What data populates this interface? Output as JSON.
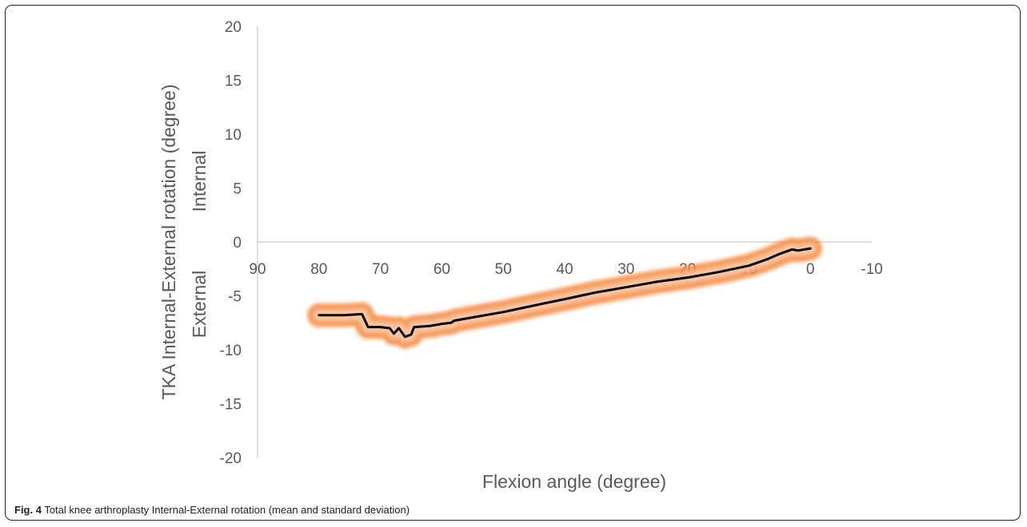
{
  "chart_data": {
    "type": "line",
    "xlabel": "Flexion angle (degree)",
    "ylabel": "TKA Internal-External rotation (degree)",
    "annotations": {
      "positive": "Internal",
      "negative": "External"
    },
    "x_axis_reversed": true,
    "xlim": [
      90,
      -10
    ],
    "ylim": [
      -20,
      20
    ],
    "x_ticks": [
      90,
      80,
      70,
      60,
      50,
      40,
      30,
      20,
      10,
      0,
      -10
    ],
    "y_ticks": [
      20,
      15,
      10,
      5,
      0,
      -5,
      -10,
      -15,
      -20
    ],
    "grid": false,
    "series": [
      {
        "role": "mean",
        "color": "#000000",
        "x": [
          80,
          76,
          73,
          72,
          70,
          68.5,
          67.8,
          67,
          66,
          65,
          64.5,
          62,
          60,
          58.5,
          58,
          55,
          50,
          45,
          40,
          35,
          30,
          25,
          20,
          15,
          10,
          7,
          5,
          3,
          2,
          0
        ],
        "y": [
          -6.8,
          -6.8,
          -6.7,
          -7.9,
          -7.9,
          -8.0,
          -8.5,
          -8.0,
          -8.8,
          -8.6,
          -7.9,
          -7.8,
          -7.6,
          -7.5,
          -7.3,
          -7.0,
          -6.5,
          -5.9,
          -5.3,
          -4.7,
          -4.2,
          -3.7,
          -3.3,
          -2.8,
          -2.2,
          -1.6,
          -1.1,
          -0.7,
          -0.8,
          -0.6
        ]
      },
      {
        "role": "standard-deviation-band",
        "color": "#F58A3C",
        "half_width": 0.8
      }
    ]
  },
  "caption": {
    "fig_label": "Fig. 4",
    "text": " Total knee arthroplasty Internal-External rotation (mean and standard deviation)"
  }
}
